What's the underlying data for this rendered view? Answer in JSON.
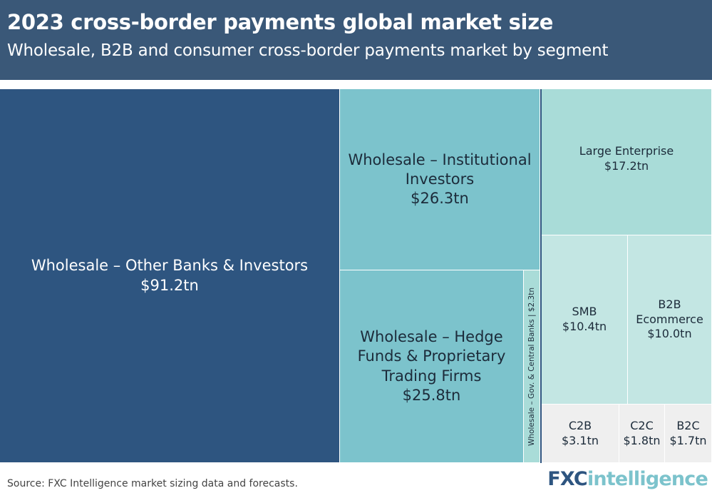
{
  "header": {
    "title": "2023 cross-border payments global market size",
    "subtitle": "Wholesale, B2B and consumer cross-border payments market by segment"
  },
  "chart_data": {
    "type": "treemap",
    "title": "2023 cross-border payments global market size",
    "subtitle": "Wholesale, B2B and consumer cross-border payments market by segment",
    "unit": "tn",
    "segments": [
      {
        "name": "Wholesale – Other Banks & Investors",
        "value": 91.2,
        "label": "$91.2tn"
      },
      {
        "name": "Wholesale – Institutional Investors",
        "value": 26.3,
        "label": "$26.3tn"
      },
      {
        "name": "Wholesale – Hedge Funds & Proprietary Trading Firms",
        "value": 25.8,
        "label": "$25.8tn"
      },
      {
        "name": "Wholesale – Gov. & Central Banks",
        "value": 2.3,
        "label": "$2.3tn"
      },
      {
        "name": "Large Enterprise",
        "value": 17.2,
        "label": "$17.2tn"
      },
      {
        "name": "SMB",
        "value": 10.4,
        "label": "$10.4tn"
      },
      {
        "name": "B2B Ecommerce",
        "value": 10.0,
        "label": "$10.0tn"
      },
      {
        "name": "C2B",
        "value": 3.1,
        "label": "$3.1tn"
      },
      {
        "name": "C2C",
        "value": 1.8,
        "label": "$1.8tn"
      },
      {
        "name": "B2C",
        "value": 1.7,
        "label": "$1.7tn"
      }
    ],
    "colors": {
      "dark": "#2e5580",
      "mid": "#7cc3cc",
      "light": "#a9dcd8",
      "pale": "#c3e6e3",
      "grey": "#efefef"
    }
  },
  "labels": {
    "other_banks": [
      "Wholesale – Other Banks & Investors",
      "$91.2tn"
    ],
    "institutional": [
      "Wholesale – Institutional",
      "Investors",
      "$26.3tn"
    ],
    "hedge_funds": [
      "Wholesale – Hedge",
      "Funds & Proprietary",
      "Trading Firms",
      "$25.8tn"
    ],
    "gov_central": "Wholesale – Gov. & Central Banks | $2.3tn",
    "large_enterprise": [
      "Large Enterprise",
      "$17.2tn"
    ],
    "smb": [
      "SMB",
      "$10.4tn"
    ],
    "b2b_ecommerce": [
      "B2B",
      "Ecommerce",
      "$10.0tn"
    ],
    "c2b": [
      "C2B",
      "$3.1tn"
    ],
    "c2c": [
      "C2C",
      "$1.8tn"
    ],
    "b2c": [
      "B2C",
      "$1.7tn"
    ]
  },
  "footer": {
    "source": "Source: FXC Intelligence market sizing data and forecasts.",
    "logo_fx": "FXC",
    "logo_intel": "intelligence"
  }
}
